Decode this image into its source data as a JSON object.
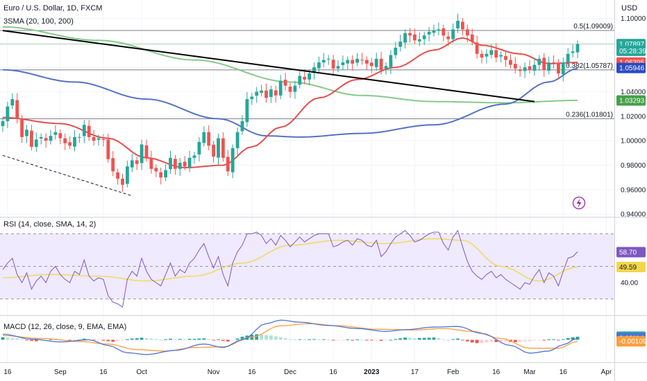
{
  "header": {
    "symbol_title": "Euro / U.S. Dollar, 1D, FXCM",
    "indicator_sma": "3SMA (20, 100, 200)",
    "indicator_rsi": "RSI (14, close, SMA, 14, 2)",
    "indicator_macd": "MACD (12, 26, close, 9, EMA, EMA)",
    "currency": "USD"
  },
  "colors": {
    "up": "#26a69a",
    "down": "#ef5350",
    "sma20": "#e74c4c",
    "sma100": "#5470c6",
    "sma200": "#86c98a",
    "rsi_line": "#7e57c2",
    "rsi_ma": "#f2d64b",
    "rsi_band": "#efeafd",
    "macd_line": "#4e72d6",
    "signal_line": "#ff9e3d",
    "trend": "#000000",
    "grid": "#f0f3fa"
  },
  "chart_data": [
    {
      "type": "candlestick",
      "name": "price",
      "ylim": [
        0.935,
        1.115
      ],
      "y_ticks": [
        "1.10000",
        "1.08000",
        "1.06000",
        "1.04000",
        "1.02000",
        "1.00000",
        "0.98000",
        "0.96000",
        "0.94000"
      ],
      "y_tick_values": [
        1.1,
        1.08,
        1.06,
        1.04,
        1.02,
        1.0,
        0.98,
        0.96,
        0.94
      ],
      "x_ticks": [
        "16",
        "Sep",
        "16",
        "Oct",
        "Nov",
        "16",
        "Dec",
        "16",
        "2023",
        "17",
        "Feb",
        "16",
        "Mar",
        "16",
        "Apr"
      ],
      "fib_levels": [
        {
          "label": "0.5(1.09009)",
          "value": 1.09009
        },
        {
          "label": "0.382(1.05787)",
          "value": 1.05787
        },
        {
          "label": "0.236(1.01801)",
          "value": 1.01801
        }
      ],
      "price_tags": [
        {
          "text": "1.07897",
          "value": 1.07897,
          "color": "#26a69a"
        },
        {
          "text": "05:28:39",
          "value": 1.0735,
          "color": "#26a69a"
        },
        {
          "text": "1.06395",
          "value": 1.06395,
          "color": "#ef5350"
        },
        {
          "text": "1.05946",
          "value": 1.05946,
          "color": "#2a4bc0"
        },
        {
          "text": "1.03293",
          "value": 1.03293,
          "color": "#43a047"
        }
      ],
      "closes": [
        1.016,
        1.028,
        1.034,
        1.018,
        1.003,
        1.009,
        0.995,
        1.001,
        1.003,
        1.0,
        1.004,
        1.007,
        1.002,
        0.998,
        0.996,
        1.003,
        1.003,
        1.013,
        1.003,
        1.0,
        1.002,
        1.001,
        0.985,
        0.975,
        0.969,
        0.964,
        0.979,
        0.984,
        0.981,
        0.997,
        0.986,
        0.977,
        0.975,
        0.97,
        0.976,
        0.986,
        0.977,
        0.982,
        0.979,
        0.986,
        0.988,
        0.999,
        1.007,
        0.996,
        0.987,
        1.002,
        0.986,
        0.975,
        0.994,
        1.007,
        1.016,
        1.034,
        1.036,
        1.04,
        1.041,
        1.035,
        1.042,
        1.037,
        1.049,
        1.045,
        1.04,
        1.045,
        1.053,
        1.05,
        1.055,
        1.06,
        1.064,
        1.066,
        1.067,
        1.059,
        1.061,
        1.064,
        1.066,
        1.063,
        1.067,
        1.066,
        1.063,
        1.061,
        1.067,
        1.058,
        1.061,
        1.07,
        1.076,
        1.081,
        1.088,
        1.086,
        1.082,
        1.083,
        1.086,
        1.089,
        1.09,
        1.091,
        1.086,
        1.083,
        1.091,
        1.098,
        1.091,
        1.086,
        1.081,
        1.071,
        1.068,
        1.071,
        1.074,
        1.068,
        1.07,
        1.066,
        1.062,
        1.059,
        1.057,
        1.06,
        1.058,
        1.062,
        1.067,
        1.058,
        1.064,
        1.063,
        1.055,
        1.064,
        1.071,
        1.073,
        1.079
      ],
      "sma20": [
        {
          "x": 0,
          "y": 1.019
        },
        {
          "x": 12,
          "y": 1.014
        },
        {
          "x": 22,
          "y": 1.002
        },
        {
          "x": 30,
          "y": 0.986
        },
        {
          "x": 38,
          "y": 0.978
        },
        {
          "x": 46,
          "y": 0.98
        },
        {
          "x": 52,
          "y": 0.995
        },
        {
          "x": 58,
          "y": 1.011
        },
        {
          "x": 66,
          "y": 1.035
        },
        {
          "x": 74,
          "y": 1.05
        },
        {
          "x": 82,
          "y": 1.06
        },
        {
          "x": 90,
          "y": 1.074
        },
        {
          "x": 96,
          "y": 1.084
        },
        {
          "x": 100,
          "y": 1.078
        },
        {
          "x": 108,
          "y": 1.071
        },
        {
          "x": 114,
          "y": 1.063
        },
        {
          "x": 120,
          "y": 1.064
        }
      ],
      "sma100": [
        {
          "x": 0,
          "y": 1.058
        },
        {
          "x": 15,
          "y": 1.048
        },
        {
          "x": 30,
          "y": 1.034
        },
        {
          "x": 45,
          "y": 1.018
        },
        {
          "x": 55,
          "y": 1.004
        },
        {
          "x": 62,
          "y": 1.003
        },
        {
          "x": 75,
          "y": 1.006
        },
        {
          "x": 90,
          "y": 1.013
        },
        {
          "x": 105,
          "y": 1.03
        },
        {
          "x": 114,
          "y": 1.048
        },
        {
          "x": 120,
          "y": 1.059
        }
      ],
      "sma200": [
        {
          "x": 0,
          "y": 1.093
        },
        {
          "x": 20,
          "y": 1.082
        },
        {
          "x": 40,
          "y": 1.066
        },
        {
          "x": 60,
          "y": 1.048
        },
        {
          "x": 75,
          "y": 1.037
        },
        {
          "x": 90,
          "y": 1.032
        },
        {
          "x": 105,
          "y": 1.031
        },
        {
          "x": 120,
          "y": 1.033
        }
      ],
      "trendline": [
        {
          "x": 0,
          "y": 1.09
        },
        {
          "x": 111,
          "y": 1.032
        }
      ],
      "support_dashed": [
        {
          "x": 0,
          "y": 0.988
        },
        {
          "x": 27,
          "y": 0.955
        }
      ]
    },
    {
      "type": "line",
      "name": "rsi",
      "ylim": [
        20,
        80
      ],
      "y_ticks": [
        "40.00"
      ],
      "y_tick_values": [
        40
      ],
      "band": [
        30,
        70
      ],
      "tags": [
        {
          "text": "58.70",
          "value": 58.7,
          "color": "#7e57c2"
        },
        {
          "text": "49.59",
          "value": 49.59,
          "color": "#f2d64b"
        }
      ],
      "rsi": [
        48,
        52,
        55,
        45,
        40,
        46,
        36,
        41,
        44,
        40,
        47,
        50,
        45,
        42,
        40,
        47,
        45,
        54,
        44,
        41,
        43,
        42,
        32,
        28,
        27,
        25,
        42,
        47,
        44,
        55,
        47,
        42,
        40,
        38,
        45,
        52,
        44,
        48,
        46,
        52,
        55,
        60,
        64,
        56,
        49,
        56,
        45,
        38,
        52,
        59,
        63,
        70,
        70,
        71,
        69,
        64,
        67,
        63,
        69,
        66,
        62,
        65,
        68,
        65,
        67,
        69,
        70,
        70,
        70,
        62,
        63,
        65,
        66,
        63,
        67,
        66,
        63,
        62,
        66,
        56,
        59,
        64,
        68,
        70,
        72,
        69,
        65,
        66,
        68,
        70,
        71,
        71,
        64,
        60,
        68,
        72,
        62,
        53,
        47,
        44,
        42,
        45,
        47,
        43,
        45,
        42,
        40,
        38,
        36,
        40,
        39,
        44,
        48,
        40,
        46,
        44,
        38,
        47,
        55,
        56,
        59
      ],
      "rsi_ma": [
        {
          "x": 0,
          "y": 43
        },
        {
          "x": 10,
          "y": 45
        },
        {
          "x": 20,
          "y": 44
        },
        {
          "x": 30,
          "y": 41
        },
        {
          "x": 40,
          "y": 44
        },
        {
          "x": 50,
          "y": 52
        },
        {
          "x": 60,
          "y": 63
        },
        {
          "x": 70,
          "y": 66
        },
        {
          "x": 80,
          "y": 64
        },
        {
          "x": 90,
          "y": 67
        },
        {
          "x": 96,
          "y": 66
        },
        {
          "x": 104,
          "y": 50
        },
        {
          "x": 112,
          "y": 41
        },
        {
          "x": 120,
          "y": 49.6
        }
      ]
    },
    {
      "type": "bar",
      "name": "macd",
      "ylim": [
        -0.016,
        0.017
      ],
      "tags": [
        {
          "text": "0.00223",
          "value": 0.00223,
          "color": "#26a69a"
        },
        {
          "text": "0.00114",
          "value": 0.00114,
          "color": "#4e72d6"
        },
        {
          "text": "-0.00109",
          "value": -0.00109,
          "color": "#ff9e3d"
        }
      ],
      "histogram": [
        0.0018,
        0.0016,
        0.0012,
        0.001,
        0.0004,
        -0.0002,
        -0.0008,
        -0.001,
        -0.0006,
        -0.0004,
        0.0003,
        0.0007,
        0.0002,
        0.0,
        -0.0003,
        -0.0002,
        0.0001,
        0.0008,
        0.0004,
        -0.0005,
        -0.0002,
        -0.0006,
        -0.001,
        -0.0014,
        -0.0009,
        -0.0004,
        0.0003,
        0.0009,
        0.0011,
        0.0015,
        0.0012,
        0.0009,
        0.0006,
        0.0001,
        0.0003,
        0.0008,
        0.0004,
        0.0006,
        0.0004,
        0.0007,
        0.0007,
        0.0009,
        0.001,
        0.0005,
        -0.0003,
        0.0003,
        -0.0007,
        -0.0012,
        -0.0004,
        0.0009,
        0.0022,
        0.003,
        0.0036,
        0.004,
        0.0037,
        0.0032,
        0.0031,
        0.0024,
        0.0018,
        0.0012,
        0.0005,
        0.0002,
        0.0004,
        0.0002,
        0.0003,
        0.0005,
        0.0003,
        0.0004,
        0.0002,
        -0.0004,
        -0.0003,
        -0.0001,
        0.0002,
        -0.0001,
        0.0002,
        0.0001,
        -0.0002,
        -0.0004,
        -0.0001,
        -0.0007,
        -0.0005,
        0.0,
        0.0006,
        0.0011,
        0.0016,
        0.0015,
        0.0012,
        0.0013,
        0.0014,
        0.0015,
        0.0016,
        0.0013,
        0.0004,
        0.0,
        0.0005,
        0.0009,
        -0.0002,
        -0.0011,
        -0.0019,
        -0.0024,
        -0.0023,
        -0.0019,
        -0.0015,
        -0.0016,
        -0.0013,
        -0.0012,
        -0.0015,
        -0.0016,
        -0.0015,
        -0.0011,
        -0.001,
        -0.0005,
        -0.0002,
        -0.0005,
        0.0003,
        0.0004,
        -0.0002,
        0.0005,
        0.0012,
        0.0018,
        0.0022
      ],
      "macd_line": [
        {
          "x": 0,
          "y": 0.004
        },
        {
          "x": 6,
          "y": 0.0005
        },
        {
          "x": 12,
          "y": -0.0015
        },
        {
          "x": 18,
          "y": 0.0
        },
        {
          "x": 22,
          "y": -0.004
        },
        {
          "x": 26,
          "y": -0.0092
        },
        {
          "x": 30,
          "y": -0.0105
        },
        {
          "x": 36,
          "y": -0.0075
        },
        {
          "x": 42,
          "y": -0.003
        },
        {
          "x": 46,
          "y": -0.0055
        },
        {
          "x": 50,
          "y": 0.0
        },
        {
          "x": 55,
          "y": 0.0115
        },
        {
          "x": 58,
          "y": 0.014
        },
        {
          "x": 62,
          "y": 0.0125
        },
        {
          "x": 68,
          "y": 0.0102
        },
        {
          "x": 74,
          "y": 0.008
        },
        {
          "x": 80,
          "y": 0.006
        },
        {
          "x": 84,
          "y": 0.0072
        },
        {
          "x": 90,
          "y": 0.009
        },
        {
          "x": 95,
          "y": 0.0095
        },
        {
          "x": 100,
          "y": 0.0045
        },
        {
          "x": 106,
          "y": -0.004
        },
        {
          "x": 110,
          "y": -0.0095
        },
        {
          "x": 114,
          "y": -0.008
        },
        {
          "x": 117,
          "y": -0.0035
        },
        {
          "x": 120,
          "y": 0.0011
        }
      ],
      "signal_line": [
        {
          "x": 0,
          "y": 0.003
        },
        {
          "x": 8,
          "y": 0.001
        },
        {
          "x": 16,
          "y": -0.0012
        },
        {
          "x": 22,
          "y": -0.003
        },
        {
          "x": 28,
          "y": -0.007
        },
        {
          "x": 34,
          "y": -0.008
        },
        {
          "x": 40,
          "y": -0.0055
        },
        {
          "x": 46,
          "y": -0.005
        },
        {
          "x": 52,
          "y": 0.002
        },
        {
          "x": 58,
          "y": 0.01
        },
        {
          "x": 64,
          "y": 0.0115
        },
        {
          "x": 70,
          "y": 0.01
        },
        {
          "x": 78,
          "y": 0.0075
        },
        {
          "x": 86,
          "y": 0.007
        },
        {
          "x": 92,
          "y": 0.008
        },
        {
          "x": 98,
          "y": 0.006
        },
        {
          "x": 104,
          "y": 0.001
        },
        {
          "x": 110,
          "y": -0.006
        },
        {
          "x": 116,
          "y": -0.006
        },
        {
          "x": 120,
          "y": -0.0011
        }
      ]
    }
  ]
}
